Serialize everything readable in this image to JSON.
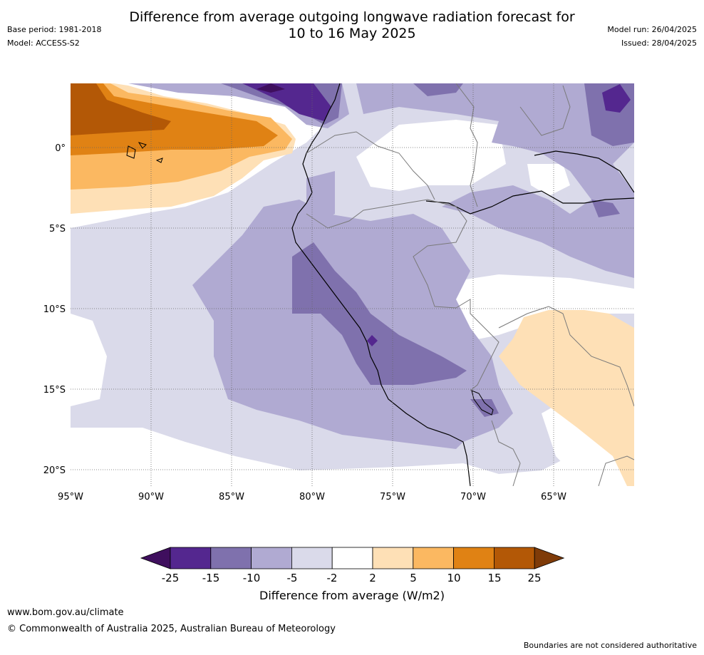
{
  "title": {
    "line1": "Difference from average outgoing longwave radiation forecast for",
    "line2": "10 to 16 May 2025"
  },
  "meta": {
    "base_period": "Base period: 1981-2018",
    "model": "Model: ACCESS-S2",
    "model_run": "Model run: 26/04/2025",
    "issued": "Issued: 28/04/2025"
  },
  "map": {
    "lat_labels": [
      "0°",
      "5°S",
      "10°S",
      "15°S",
      "20°S"
    ],
    "lon_labels": [
      "95°W",
      "90°W",
      "85°W",
      "80°W",
      "75°W",
      "70°W",
      "65°W"
    ]
  },
  "colorbar": {
    "title": "Difference from average (W/m2)",
    "ticks": [
      "-25",
      "-15",
      "-10",
      "-5",
      "-2",
      "2",
      "5",
      "10",
      "15",
      "25"
    ],
    "colors": [
      "#3f0f5e",
      "#54278f",
      "#7f71ad",
      "#b0aad2",
      "#dadaea",
      "#ffffff",
      "#fee0b6",
      "#fbb861",
      "#e08214",
      "#b35806",
      "#7f3b08"
    ]
  },
  "footer": {
    "url": "www.bom.gov.au/climate",
    "copyright": "© Commonwealth of Australia 2025, Australian Bureau of Meteorology",
    "note": "Boundaries are not considered authoritative"
  }
}
